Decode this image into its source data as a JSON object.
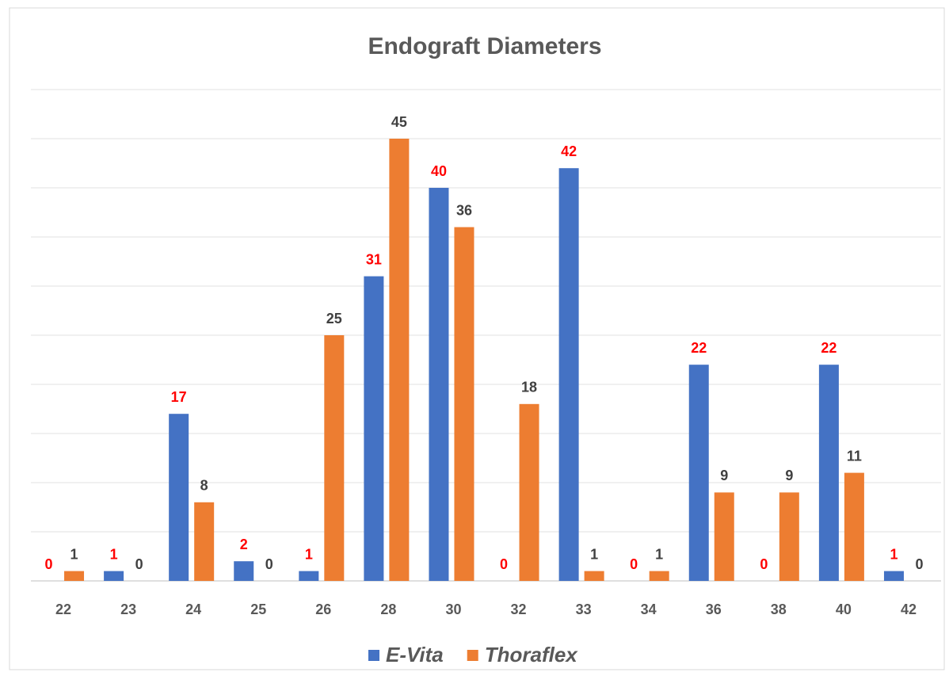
{
  "chart_data": {
    "type": "bar",
    "title": "Endograft Diameters",
    "categories": [
      "22",
      "23",
      "24",
      "25",
      "26",
      "28",
      "30",
      "32",
      "33",
      "34",
      "36",
      "38",
      "40",
      "42"
    ],
    "series": [
      {
        "name": "E-Vita",
        "color": "#4472c4",
        "label_color": "#ff0000",
        "values": [
          0,
          1,
          17,
          2,
          1,
          31,
          40,
          0,
          42,
          0,
          22,
          0,
          22,
          1
        ]
      },
      {
        "name": "Thoraflex",
        "color": "#ed7d31",
        "label_color": "#404040",
        "values": [
          1,
          0,
          8,
          0,
          25,
          45,
          36,
          18,
          1,
          1,
          9,
          9,
          11,
          0
        ]
      }
    ],
    "ylim": [
      0,
      50
    ],
    "yticks": [
      0,
      5,
      10,
      15,
      20,
      25,
      30,
      35,
      40,
      45,
      50
    ],
    "grid": true,
    "legend": "bottom"
  }
}
